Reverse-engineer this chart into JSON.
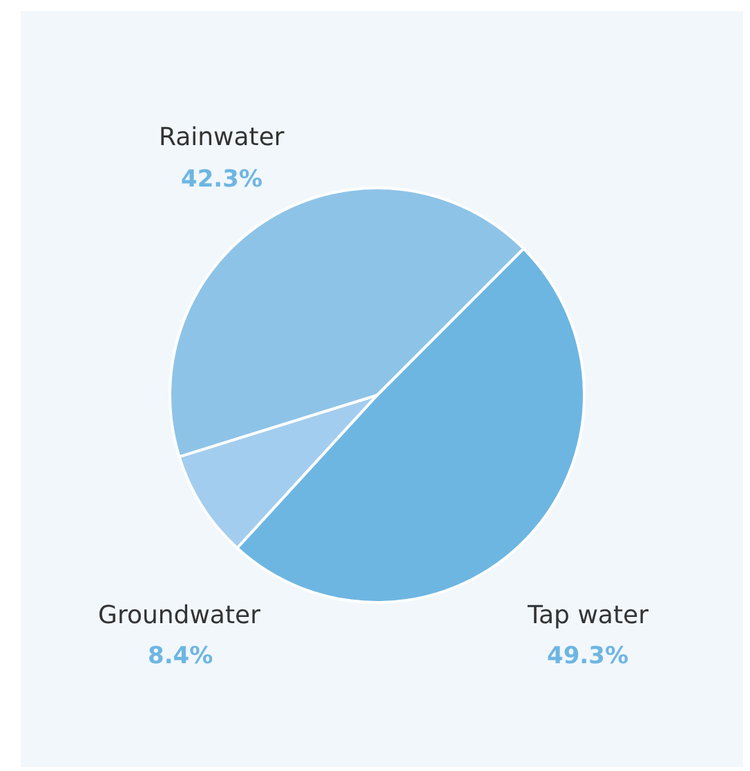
{
  "chart_data": {
    "type": "pie",
    "categories": [
      "Tap water",
      "Groundwater",
      "Rainwater"
    ],
    "values": [
      49.3,
      8.4,
      42.3
    ],
    "colors": [
      "#6db6e2",
      "#a3cdee",
      "#8ec3e8"
    ],
    "value_labels": [
      "49.3%",
      "8.4%",
      "42.3%"
    ],
    "legend": false
  }
}
